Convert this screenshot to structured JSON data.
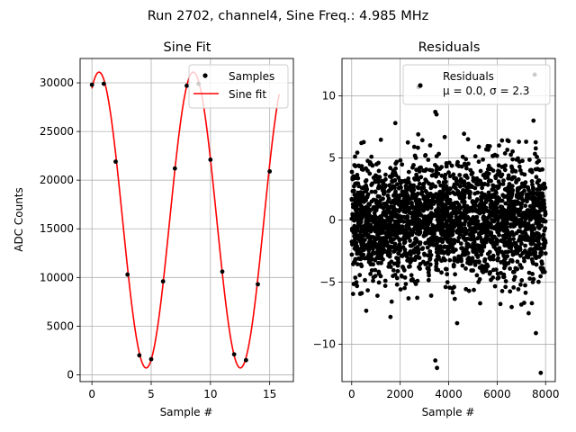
{
  "suptitle": "Run 2702, channel4, Sine Freq.: 4.985 MHz",
  "colors": {
    "sample": "#000000",
    "fit": "#ff0000",
    "grid": "#b0b0b0",
    "residual": "#000000"
  },
  "chart_data": [
    {
      "type": "line",
      "title": "Sine Fit",
      "xlabel": "Sample #",
      "ylabel": "ADC Counts",
      "xlim": [
        -1,
        17
      ],
      "ylim": [
        -700,
        32500
      ],
      "xticks": [
        0,
        5,
        10,
        15
      ],
      "yticks": [
        0,
        5000,
        10000,
        15000,
        20000,
        25000,
        30000
      ],
      "grid": true,
      "legend": {
        "location": "upper right",
        "entries": [
          "Samples",
          "Sine fit"
        ]
      },
      "series": [
        {
          "name": "Samples",
          "kind": "scatter",
          "x": [
            0,
            1,
            2,
            3,
            4,
            5,
            6,
            7,
            8,
            9,
            10,
            11,
            12,
            13,
            14,
            15
          ],
          "y": [
            29800,
            29900,
            21900,
            10300,
            2000,
            1600,
            9600,
            21200,
            29700,
            29900,
            22100,
            10600,
            2100,
            1500,
            9300,
            20900
          ]
        },
        {
          "name": "Sine fit",
          "kind": "line",
          "model": {
            "offset": 15900,
            "amplitude": 15200,
            "period": 7.95,
            "peak_at": 0.6
          },
          "x_range": [
            0,
            15.8
          ]
        }
      ]
    },
    {
      "type": "scatter",
      "title": "Residuals",
      "xlabel": "Sample #",
      "ylabel": "",
      "xlim": [
        -400,
        8400
      ],
      "ylim": [
        -13,
        13
      ],
      "xticks": [
        0,
        2000,
        4000,
        6000,
        8000
      ],
      "yticks": [
        -10,
        -5,
        0,
        5,
        10
      ],
      "grid": true,
      "legend": {
        "location": "upper right",
        "entries": [
          "Residuals",
          "μ = 0.0, σ = 2.3"
        ]
      },
      "stats": {
        "mean": 0.0,
        "sigma": 2.3,
        "n_samples": 8000
      },
      "outliers": [
        {
          "x": 2750,
          "y": 10.7
        },
        {
          "x": 7550,
          "y": 11.7
        },
        {
          "x": 7500,
          "y": 8.0
        },
        {
          "x": 1800,
          "y": 7.8
        },
        {
          "x": 3450,
          "y": 8.7
        },
        {
          "x": 3500,
          "y": 8.5
        },
        {
          "x": 3450,
          "y": -11.3
        },
        {
          "x": 3520,
          "y": -11.9
        },
        {
          "x": 7600,
          "y": -9.1
        },
        {
          "x": 7800,
          "y": -12.3
        },
        {
          "x": 1600,
          "y": -7.8
        },
        {
          "x": 4350,
          "y": -8.3
        },
        {
          "x": 7300,
          "y": -7.5
        },
        {
          "x": 5300,
          "y": -6.7
        },
        {
          "x": 6600,
          "y": -7.0
        },
        {
          "x": 600,
          "y": -7.3
        },
        {
          "x": 4800,
          "y": 6.5
        },
        {
          "x": 6200,
          "y": 6.4
        },
        {
          "x": 6900,
          "y": 6.3
        },
        {
          "x": 7000,
          "y": -6.8
        },
        {
          "x": 400,
          "y": 6.2
        }
      ]
    }
  ]
}
